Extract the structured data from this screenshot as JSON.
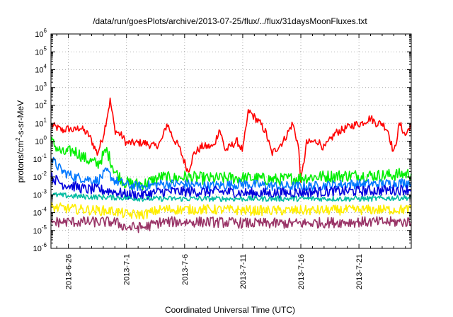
{
  "chart_data": {
    "type": "line",
    "title": "/data/run/goesPlots/archive/2013-07-25/flux/../flux/31daysMoonFluxes.txt",
    "xlabel": "Coordinated Universal Time (UTC)",
    "ylabel": {
      "prefix": "protons/cm",
      "sup": "2",
      "suffix": "-s-sr-MeV"
    },
    "yscale": "log",
    "ylim": [
      1e-06,
      1000000.0
    ],
    "xlim_days": [
      -1.5,
      29.5
    ],
    "grid": true,
    "legend": "none",
    "x_ticks": [
      {
        "label": "2013-6-26",
        "day": 0
      },
      {
        "label": "2013-7-1",
        "day": 5
      },
      {
        "label": "2013-7-6",
        "day": 10
      },
      {
        "label": "2013-7-11",
        "day": 15
      },
      {
        "label": "2013-7-16",
        "day": 20
      },
      {
        "label": "2013-7-21",
        "day": 25
      }
    ],
    "y_ticks": [
      {
        "base": "10",
        "exp": "-6",
        "value": 1e-06
      },
      {
        "base": "10",
        "exp": "-5",
        "value": 1e-05
      },
      {
        "base": "10",
        "exp": "-4",
        "value": 0.0001
      },
      {
        "base": "10",
        "exp": "-3",
        "value": 0.001
      },
      {
        "base": "10",
        "exp": "-2",
        "value": 0.01
      },
      {
        "base": "10",
        "exp": "-1",
        "value": 0.1
      },
      {
        "base": "10",
        "exp": "0",
        "value": 1
      },
      {
        "base": "10",
        "exp": "1",
        "value": 10
      },
      {
        "base": "10",
        "exp": "2",
        "value": 100
      },
      {
        "base": "10",
        "exp": "3",
        "value": 1000
      },
      {
        "base": "10",
        "exp": "4",
        "value": 10000
      },
      {
        "base": "10",
        "exp": "5",
        "value": 100000
      },
      {
        "base": "10",
        "exp": "6",
        "value": 1000000
      }
    ],
    "series": [
      {
        "color": "#ff0000",
        "noise": 0.22,
        "points": [
          [
            -1.5,
            8
          ],
          [
            -0.5,
            4
          ],
          [
            0,
            5
          ],
          [
            0.5,
            4
          ],
          [
            1,
            6
          ],
          [
            1.8,
            2
          ],
          [
            2.5,
            0.2
          ],
          [
            3.0,
            2
          ],
          [
            3.6,
            200
          ],
          [
            4.0,
            4
          ],
          [
            4.6,
            2
          ],
          [
            5.0,
            0.8
          ],
          [
            6.5,
            0.8
          ],
          [
            7.5,
            0.5
          ],
          [
            8.0,
            1
          ],
          [
            8.5,
            10
          ],
          [
            9.0,
            1.5
          ],
          [
            9.5,
            0.5
          ],
          [
            10.3,
            0.02
          ],
          [
            10.8,
            0.2
          ],
          [
            11.5,
            0.5
          ],
          [
            12.5,
            0.5
          ],
          [
            13.0,
            5
          ],
          [
            13.5,
            0.3
          ],
          [
            14.5,
            1
          ],
          [
            15.0,
            0.3
          ],
          [
            15.5,
            50
          ],
          [
            16.5,
            10
          ],
          [
            17.0,
            3
          ],
          [
            17.5,
            0.2
          ],
          [
            18.5,
            1
          ],
          [
            19.3,
            10
          ],
          [
            19.8,
            0.5
          ],
          [
            20.0,
            0.005
          ],
          [
            20.5,
            0.8
          ],
          [
            21.5,
            1
          ],
          [
            22.0,
            0.4
          ],
          [
            23.0,
            3
          ],
          [
            23.8,
            5
          ],
          [
            24.5,
            8
          ],
          [
            25.2,
            10
          ],
          [
            26.0,
            20
          ],
          [
            26.5,
            10
          ],
          [
            27.0,
            10
          ],
          [
            27.5,
            4
          ],
          [
            28.0,
            0.2
          ],
          [
            28.5,
            10
          ],
          [
            29.0,
            2
          ],
          [
            29.5,
            10
          ]
        ]
      },
      {
        "color": "#00ee00",
        "noise": 0.35,
        "points": [
          [
            -1.5,
            1
          ],
          [
            -0.5,
            0.2
          ],
          [
            0.5,
            0.3
          ],
          [
            1.5,
            0.1
          ],
          [
            2.5,
            0.05
          ],
          [
            3.3,
            0.3
          ],
          [
            4.0,
            0.02
          ],
          [
            4.8,
            0.005
          ],
          [
            5.5,
            0.004
          ],
          [
            6.5,
            0.004
          ],
          [
            8.0,
            0.01
          ],
          [
            9.0,
            0.008
          ],
          [
            10.0,
            0.01
          ],
          [
            12.0,
            0.008
          ],
          [
            15.0,
            0.009
          ],
          [
            18.0,
            0.007
          ],
          [
            21.0,
            0.01
          ],
          [
            24.0,
            0.012
          ],
          [
            27.0,
            0.012
          ],
          [
            29.5,
            0.015
          ]
        ]
      },
      {
        "color": "#0077ff",
        "noise": 0.28,
        "points": [
          [
            -1.5,
            0.1
          ],
          [
            -0.5,
            0.02
          ],
          [
            0.5,
            0.01
          ],
          [
            1.5,
            0.008
          ],
          [
            2.5,
            0.006
          ],
          [
            3.3,
            0.02
          ],
          [
            4.0,
            0.006
          ],
          [
            4.8,
            0.004
          ],
          [
            5.5,
            0.003
          ],
          [
            6.5,
            0.003
          ],
          [
            8.0,
            0.004
          ],
          [
            10.0,
            0.004
          ],
          [
            12.0,
            0.003
          ],
          [
            15.0,
            0.004
          ],
          [
            18.0,
            0.003
          ],
          [
            21.0,
            0.003
          ],
          [
            24.0,
            0.004
          ],
          [
            27.0,
            0.004
          ],
          [
            29.5,
            0.005
          ]
        ]
      },
      {
        "color": "#0000dd",
        "noise": 0.3,
        "points": [
          [
            -1.5,
            0.01
          ],
          [
            -0.5,
            0.004
          ],
          [
            0.5,
            0.003
          ],
          [
            1.5,
            0.002
          ],
          [
            2.5,
            0.002
          ],
          [
            4.0,
            0.0015
          ],
          [
            5.0,
            0.001
          ],
          [
            6.5,
            0.001
          ],
          [
            8.0,
            0.0015
          ],
          [
            10.0,
            0.0015
          ],
          [
            13.0,
            0.0015
          ],
          [
            16.0,
            0.0012
          ],
          [
            19.0,
            0.0013
          ],
          [
            22.0,
            0.0015
          ],
          [
            25.0,
            0.0016
          ],
          [
            29.5,
            0.002
          ]
        ]
      },
      {
        "color": "#00bba0",
        "noise": 0.15,
        "points": [
          [
            -1.5,
            0.001
          ],
          [
            1.0,
            0.0008
          ],
          [
            4.0,
            0.0007
          ],
          [
            6.5,
            0.0006
          ],
          [
            10.0,
            0.0006
          ],
          [
            14.0,
            0.0006
          ],
          [
            18.0,
            0.0006
          ],
          [
            22.0,
            0.0006
          ],
          [
            26.0,
            0.0006
          ],
          [
            29.5,
            0.0007
          ]
        ]
      },
      {
        "color": "#ffee00",
        "noise": 0.28,
        "points": [
          [
            -1.5,
            0.0002
          ],
          [
            1.0,
            0.00015
          ],
          [
            4.0,
            0.00012
          ],
          [
            5.0,
            8e-05
          ],
          [
            6.5,
            8e-05
          ],
          [
            8.0,
            0.00015
          ],
          [
            12.0,
            0.00015
          ],
          [
            16.0,
            0.00013
          ],
          [
            20.0,
            0.00013
          ],
          [
            24.0,
            0.00014
          ],
          [
            29.5,
            0.00015
          ]
        ]
      },
      {
        "color": "#993366",
        "noise": 0.3,
        "points": [
          [
            -1.5,
            3e-05
          ],
          [
            1.0,
            3e-05
          ],
          [
            4.0,
            3e-05
          ],
          [
            5.0,
            1.5e-05
          ],
          [
            6.5,
            1.5e-05
          ],
          [
            8.0,
            3e-05
          ],
          [
            12.0,
            3e-05
          ],
          [
            16.0,
            2.5e-05
          ],
          [
            20.0,
            2.5e-05
          ],
          [
            24.0,
            3e-05
          ],
          [
            29.5,
            3e-05
          ]
        ]
      }
    ]
  }
}
